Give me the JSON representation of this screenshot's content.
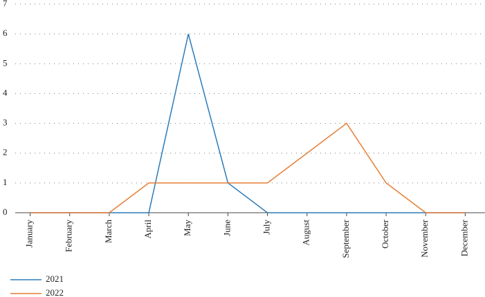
{
  "chart_data": {
    "type": "line",
    "categories": [
      "January",
      "February",
      "March",
      "April",
      "May",
      "June",
      "July",
      "August",
      "September",
      "October",
      "November",
      "December"
    ],
    "series": [
      {
        "name": "2021",
        "color": "#2a7ab9",
        "values": [
          0,
          0,
          0,
          0,
          6,
          1,
          0,
          0,
          0,
          0,
          0,
          0
        ]
      },
      {
        "name": "2022",
        "color": "#e77d35",
        "values": [
          0,
          0,
          0,
          1,
          1,
          1,
          1,
          2,
          3,
          1,
          0,
          0
        ]
      }
    ],
    "ylim": [
      0,
      7
    ],
    "yticks": [
      0,
      1,
      2,
      3,
      4,
      5,
      6,
      7
    ],
    "grid": true
  }
}
